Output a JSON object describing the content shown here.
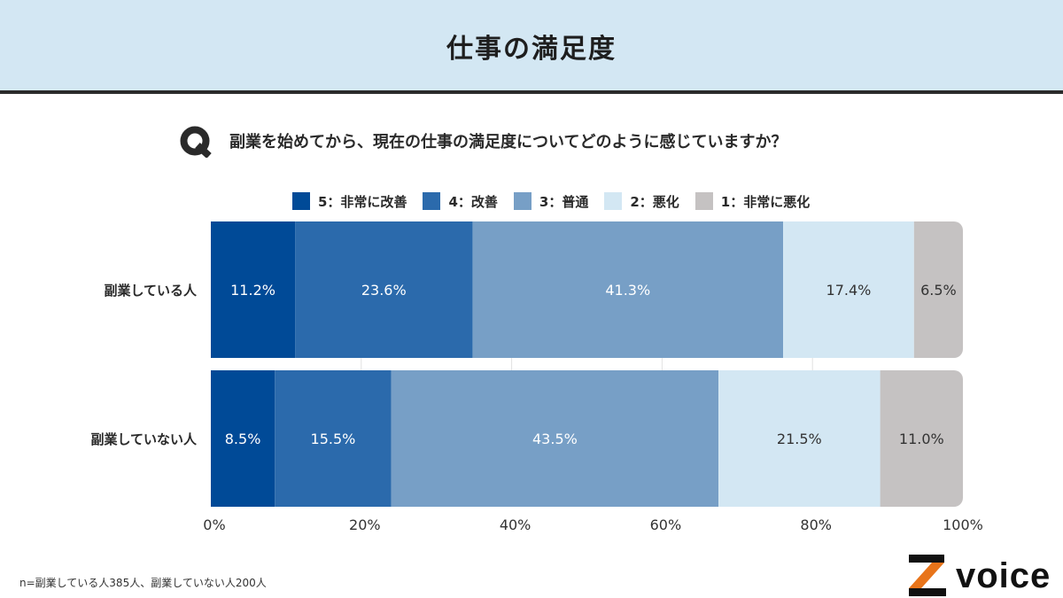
{
  "header": {
    "title": "仕事の満足度"
  },
  "question": {
    "icon": "q-icon",
    "text": "副業を始めてから、現在の仕事の満足度についてどのように感じていますか？"
  },
  "note": "n=副業している人385人、副業していない人200人",
  "logo": {
    "text": "voice",
    "icon": "z-logo-icon",
    "accent": "#e8741a"
  },
  "chart_data": {
    "type": "bar",
    "orientation": "horizontal",
    "stacked": true,
    "title": "仕事の満足度",
    "categories": [
      "副業している人",
      "副業していない人"
    ],
    "series": [
      {
        "name": "5：非常に改善",
        "values": [
          11.2,
          8.5
        ],
        "labels": [
          "11.2%",
          "8.5%"
        ],
        "color": "#004a97",
        "text_color": "#ffffff"
      },
      {
        "name": "4：改善",
        "values": [
          23.6,
          15.5
        ],
        "labels": [
          "23.6%",
          "15.5%"
        ],
        "color": "#2b6aac",
        "text_color": "#ffffff"
      },
      {
        "name": "3：普通",
        "values": [
          41.3,
          43.5
        ],
        "labels": [
          "41.3%",
          "43.5%"
        ],
        "color": "#779fc6",
        "text_color": "#ffffff"
      },
      {
        "name": "2：悪化",
        "values": [
          17.4,
          21.5
        ],
        "labels": [
          "17.4%",
          "21.5%"
        ],
        "color": "#d3e7f3",
        "text_color": "#333333"
      },
      {
        "name": "1：非常に悪化",
        "values": [
          6.5,
          11.0
        ],
        "labels": [
          "6.5%",
          "11.0%"
        ],
        "color": "#c5c2c2",
        "text_color": "#333333"
      }
    ],
    "x_ticks": [
      "0%",
      "20%",
      "40%",
      "60%",
      "80%",
      "100%"
    ],
    "xlim": [
      0,
      100
    ],
    "legend_position": "top",
    "grid": true
  }
}
